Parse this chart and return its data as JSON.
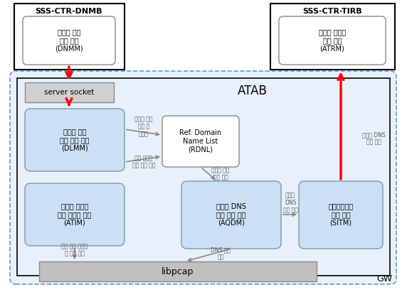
{
  "bg_color": "#ffffff",
  "atab_fill": "#e8f0fb",
  "atab_edge": "#6699cc",
  "module_fill": "#cce0f5",
  "module_edge": "#7799aa",
  "server_fill": "#d0d0d0",
  "server_edge": "#888888",
  "libpcap_fill": "#c0c0c0",
  "libpcap_edge": "#888888",
  "rdnl_fill": "#ffffff",
  "rdnl_edge": "#888888",
  "sss_fill": "#ffffff",
  "sss_edge": "#000000",
  "inner_fill": "#ffffff",
  "inner_edge": "#888888",
  "sss_dnmb_title": "SSS-CTR-DNMB",
  "sss_dnmb_body": "도메인 네임\n관리 모듈\n(DNMM)",
  "sss_tirb_title": "SSS-CTR-TIRB",
  "sss_tirb_body": "비정상 트래픽\n수신 모듈\n(ATRM)",
  "server_socket_label": "server socket",
  "atab_label": "ATAB",
  "gw_label": "GW",
  "dlmm_label": "도메인 네임\n목록 관리 모듈\n(DLMM)",
  "atim_label": "비정상 트래픽\n분석 초기화 모듈\n(ATIM)",
  "rdnl_label": "Ref. Domain\nName List\n(RDNL)",
  "aqdm_label": "비정상 DNS\n쿼리 탐지 모듈\n(AQDM)",
  "sitm_label": "보안위협정보\n전송 모듈\n(SITM)",
  "libpcap_label": "libpcap",
  "ann_dlmm_rdnl_top": "도메인 네일\n관리 및\n패블링",
  "ann_dlmm_rdnl_bot": "참조 도메인\n네임 목록 로딩",
  "ann_rdnl_aqdm": "도메인 네일\n목록 참조",
  "ann_aqdm_sitm": "비정상\nDNS\n쿼리 정보",
  "ann_sitm_tirb": "비정상 DNS\n쿼리 정보",
  "ann_atim_lib": "패킷 캡처 초기화\n및 필터 설정",
  "ann_aqdm_lib": "DNS 패킷\n캡처"
}
